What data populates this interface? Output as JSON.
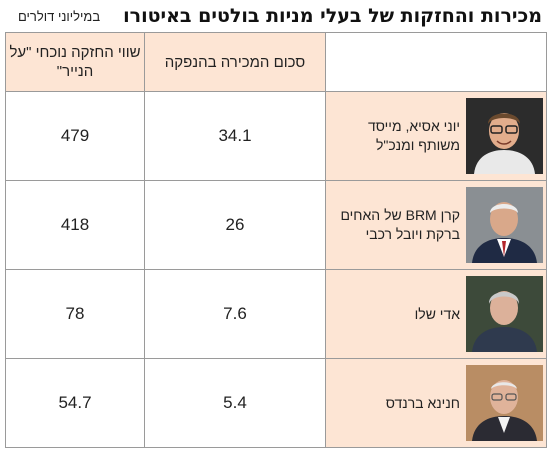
{
  "header": {
    "title": "מכירות והחזקות של בעלי מניות בולטים באיטורו",
    "subtitle": "במיליוני דולרים"
  },
  "columns": {
    "sale_amount": "סכום המכירה בהנפקה",
    "holding_value": "שווי החזקה נוכחי \"על הנייר\""
  },
  "rows": [
    {
      "name": "יוני אסיא, מייסד משותף ומנכ\"ל",
      "sale": "34.1",
      "holding": "479",
      "photo_icon": "person-photo"
    },
    {
      "name": "קרן BRM של האחים ברקת ויובל רכבי",
      "sale": "26",
      "holding": "418",
      "photo_icon": "person-photo"
    },
    {
      "name": "אדי שלו",
      "sale": "7.6",
      "holding": "78",
      "photo_icon": "person-photo"
    },
    {
      "name": "חנינא ברנדס",
      "sale": "5.4",
      "holding": "54.7",
      "photo_icon": "person-photo"
    }
  ]
}
